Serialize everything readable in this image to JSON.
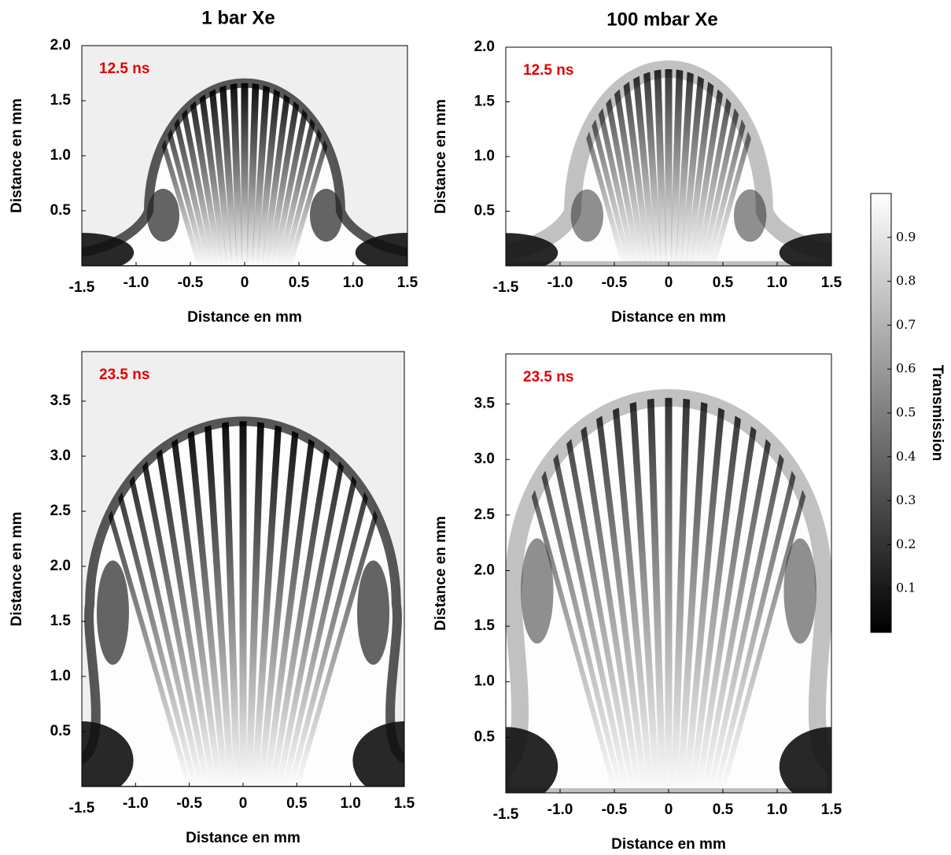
{
  "chart_data": [
    {
      "type": "image",
      "title": "1 bar Xe",
      "annotation": "12.5 ns",
      "xlabel": "Distance en mm",
      "ylabel": "Distance en mm",
      "xlim": [
        -1.5,
        1.5
      ],
      "ylim": [
        0,
        2.0
      ],
      "xticks": [
        -1.5,
        {
          "value": -1,
          "label": "-1.0"
        },
        -0.5,
        0,
        0.5,
        {
          "value": 1,
          "label": "1.0"
        },
        1.5
      ],
      "yticks": [
        0.5,
        {
          "value": 1,
          "label": "1.0"
        },
        1.5,
        {
          "value": 2,
          "label": "2.0"
        }
      ]
    },
    {
      "type": "image",
      "title": "100 mbar Xe",
      "annotation": "12.5 ns",
      "xlabel": "Distance en mm",
      "ylabel": "Distance en mm",
      "xlim": [
        -1.5,
        1.5
      ],
      "ylim": [
        0,
        2.0
      ],
      "xticks": [
        -1.5,
        {
          "value": -1,
          "label": "-1.0"
        },
        -0.5,
        0,
        0.5,
        {
          "value": 1,
          "label": "1.0"
        },
        1.5
      ],
      "yticks": [
        0.5,
        {
          "value": 1,
          "label": "1.0"
        },
        1.5,
        {
          "value": 2,
          "label": "2.0"
        }
      ]
    },
    {
      "type": "image",
      "annotation": "23.5 ns",
      "xlabel": "Distance en mm",
      "ylabel": "Distance en mm",
      "xlim": [
        -1.5,
        1.5
      ],
      "ylim": [
        0,
        3.95
      ],
      "xticks": [
        -1.5,
        {
          "value": -1,
          "label": "-1.0"
        },
        -0.5,
        0,
        0.5,
        {
          "value": 1,
          "label": "1.0"
        },
        1.5
      ],
      "yticks": [
        0.5,
        {
          "value": 1,
          "label": "1.0"
        },
        1.5,
        {
          "value": 2,
          "label": "2.0"
        },
        2.5,
        {
          "value": 3,
          "label": "3.0"
        },
        3.5
      ]
    },
    {
      "type": "image",
      "annotation": "23.5 ns",
      "xlabel": "Distance en mm",
      "ylabel": "Distance en mm",
      "xlim": [
        -1.5,
        1.5
      ],
      "ylim": [
        0,
        3.95
      ],
      "xticks": [
        -1.5,
        {
          "value": -1,
          "label": "-1.0"
        },
        -0.5,
        0,
        0.5,
        {
          "value": 1,
          "label": "1.0"
        },
        1.5
      ],
      "yticks": [
        0.5,
        {
          "value": 1,
          "label": "1.0"
        },
        1.5,
        {
          "value": 2,
          "label": "2.0"
        },
        2.5,
        {
          "value": 3,
          "label": "3.0"
        },
        3.5
      ]
    },
    {
      "type": "colorbar",
      "label": "Transmission",
      "zlim": [
        0,
        1
      ],
      "zticks": [
        0.1,
        0.2,
        0.3,
        0.4,
        0.5,
        0.6,
        0.7,
        0.8,
        0.9
      ],
      "colormap": [
        "#000000",
        "#ffffff"
      ]
    }
  ]
}
